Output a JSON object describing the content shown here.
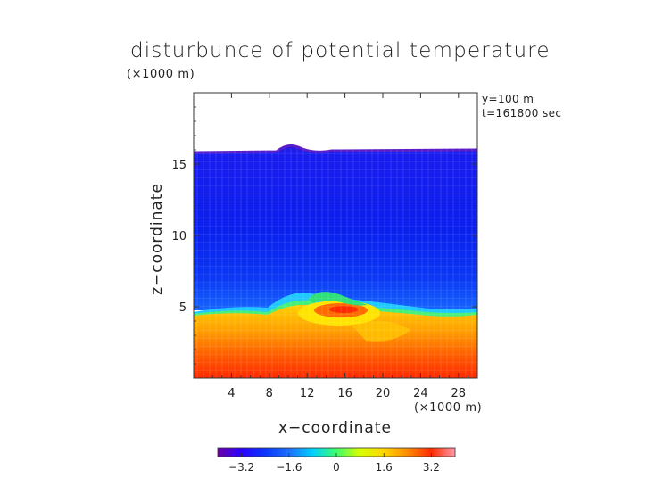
{
  "chart_data": {
    "type": "heatmap",
    "title": "disturbunce of potential temperature",
    "xlabel": "x−coordinate",
    "ylabel": "z−coordinate",
    "x_unit": "(×1000 m)",
    "z_unit": "(×1000 m)",
    "annotations": [
      "y=100 m",
      "t=161800 sec"
    ],
    "xlim": [
      0,
      30
    ],
    "zlim": [
      0,
      20
    ],
    "x_ticks": [
      4,
      8,
      12,
      16,
      20,
      24,
      28
    ],
    "z_ticks": [
      5,
      10,
      15
    ],
    "colorbar": {
      "min": -4,
      "max": 4,
      "ticks": [
        -3.2,
        -1.6,
        0,
        1.6,
        3.2
      ],
      "tick_labels": [
        "−3.2",
        "−1.6",
        "0",
        "1.6",
        "3.2"
      ],
      "colors": [
        "#6a00a8",
        "#2a00ff",
        "#0a35ff",
        "#1c70ff",
        "#00d0ff",
        "#3cff6a",
        "#d8ff00",
        "#ffd600",
        "#ff8a00",
        "#ff2a00",
        "#ff9aa8"
      ]
    },
    "field_description_values": {
      "upper_layer_value": -3.6,
      "lower_layer_value": 2.6,
      "top_of_field_z": 16.1,
      "interface_z": 5
    },
    "grid": false
  }
}
